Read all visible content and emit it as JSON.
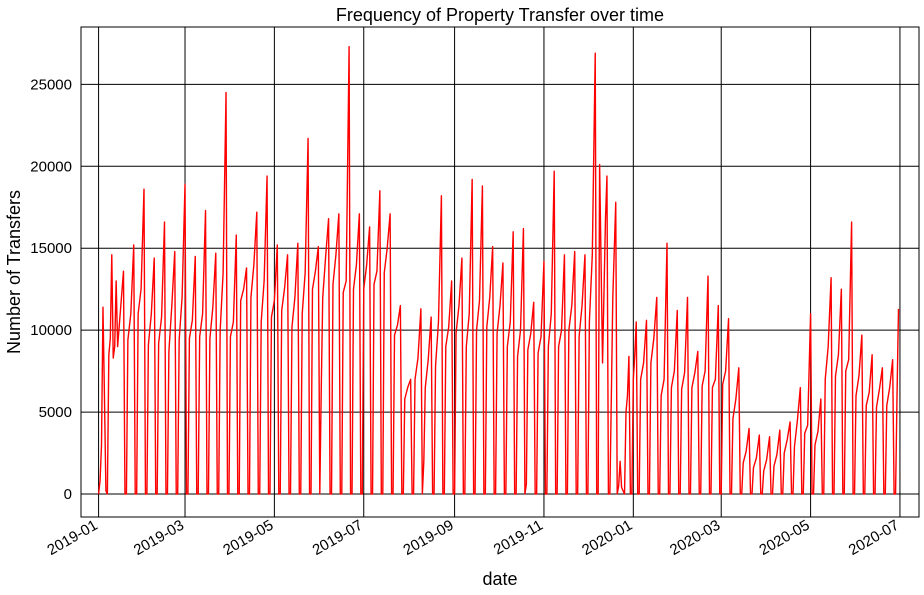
{
  "chart_data": {
    "type": "line",
    "title": "Frequency of Property Transfer over time",
    "xlabel": "date",
    "ylabel": "Number of Transfers",
    "x_range": [
      "2018-12-20",
      "2020-07-14"
    ],
    "ylim": [
      -1400,
      28500
    ],
    "grid": true,
    "line_color": "#ff0000",
    "x_ticks": [
      "2019-01",
      "2019-03",
      "2019-05",
      "2019-07",
      "2019-09",
      "2019-11",
      "2020-01",
      "2020-03",
      "2020-05",
      "2020-07"
    ],
    "x_tick_dates": [
      "2019-01-01",
      "2019-03-01",
      "2019-05-01",
      "2019-07-01",
      "2019-09-01",
      "2019-11-01",
      "2020-01-01",
      "2020-03-01",
      "2020-05-01",
      "2020-07-01"
    ],
    "y_ticks": [
      0,
      5000,
      10000,
      15000,
      20000,
      25000
    ],
    "y_tick_labels": [
      "0",
      "5000",
      "10000",
      "15000",
      "20000",
      "25000"
    ],
    "series": [
      {
        "dates": [
          "2019-01-01",
          "2019-01-02",
          "2019-01-03",
          "2019-01-04",
          "2019-01-05",
          "2019-01-06",
          "2019-01-07",
          "2019-01-08",
          "2019-01-09",
          "2019-01-10",
          "2019-01-11",
          "2019-01-12",
          "2019-01-13",
          "2019-01-14",
          "2019-01-16",
          "2019-01-18",
          "2019-01-19",
          "2019-01-20",
          "2019-01-21",
          "2019-01-23",
          "2019-01-25",
          "2019-01-26",
          "2019-01-27",
          "2019-01-28",
          "2019-01-30",
          "2019-02-01",
          "2019-02-02",
          "2019-02-03",
          "2019-02-04",
          "2019-02-06",
          "2019-02-08",
          "2019-02-09",
          "2019-02-10",
          "2019-02-11",
          "2019-02-13",
          "2019-02-15",
          "2019-02-16",
          "2019-02-17",
          "2019-02-18",
          "2019-02-20",
          "2019-02-22",
          "2019-02-23",
          "2019-02-24",
          "2019-02-25",
          "2019-02-27",
          "2019-03-01",
          "2019-03-02",
          "2019-03-03",
          "2019-03-04",
          "2019-03-06",
          "2019-03-08",
          "2019-03-09",
          "2019-03-10",
          "2019-03-11",
          "2019-03-13",
          "2019-03-15",
          "2019-03-16",
          "2019-03-17",
          "2019-03-18",
          "2019-03-20",
          "2019-03-22",
          "2019-03-23",
          "2019-03-24",
          "2019-03-25",
          "2019-03-27",
          "2019-03-29",
          "2019-03-30",
          "2019-03-31",
          "2019-04-01",
          "2019-04-03",
          "2019-04-05",
          "2019-04-06",
          "2019-04-07",
          "2019-04-08",
          "2019-04-10",
          "2019-04-12",
          "2019-04-13",
          "2019-04-14",
          "2019-04-15",
          "2019-04-17",
          "2019-04-19",
          "2019-04-20",
          "2019-04-21",
          "2019-04-22",
          "2019-04-24",
          "2019-04-26",
          "2019-04-27",
          "2019-04-28",
          "2019-04-29",
          "2019-05-01",
          "2019-05-03",
          "2019-05-04",
          "2019-05-05",
          "2019-05-06",
          "2019-05-08",
          "2019-05-10",
          "2019-05-11",
          "2019-05-12",
          "2019-05-13",
          "2019-05-15",
          "2019-05-17",
          "2019-05-18",
          "2019-05-19",
          "2019-05-20",
          "2019-05-22",
          "2019-05-24",
          "2019-05-25",
          "2019-05-26",
          "2019-05-27",
          "2019-05-29",
          "2019-05-31",
          "2019-06-01",
          "2019-06-02",
          "2019-06-03",
          "2019-06-05",
          "2019-06-07",
          "2019-06-08",
          "2019-06-09",
          "2019-06-10",
          "2019-06-12",
          "2019-06-14",
          "2019-06-15",
          "2019-06-16",
          "2019-06-17",
          "2019-06-19",
          "2019-06-21",
          "2019-06-22",
          "2019-06-23",
          "2019-06-24",
          "2019-06-26",
          "2019-06-28",
          "2019-06-29",
          "2019-06-30",
          "2019-07-01",
          "2019-07-03",
          "2019-07-05",
          "2019-07-06",
          "2019-07-07",
          "2019-07-08",
          "2019-07-10",
          "2019-07-12",
          "2019-07-13",
          "2019-07-14",
          "2019-07-15",
          "2019-07-17",
          "2019-07-19",
          "2019-07-20",
          "2019-07-21",
          "2019-07-22",
          "2019-07-24",
          "2019-07-26",
          "2019-07-27",
          "2019-07-28",
          "2019-07-29",
          "2019-07-31",
          "2019-08-02",
          "2019-08-03",
          "2019-08-04",
          "2019-08-05",
          "2019-08-07",
          "2019-08-09",
          "2019-08-10",
          "2019-08-11",
          "2019-08-12",
          "2019-08-14",
          "2019-08-16",
          "2019-08-17",
          "2019-08-18",
          "2019-08-19",
          "2019-08-21",
          "2019-08-23",
          "2019-08-24",
          "2019-08-25",
          "2019-08-26",
          "2019-08-28",
          "2019-08-30",
          "2019-08-31",
          "2019-09-01",
          "2019-09-02",
          "2019-09-04",
          "2019-09-06",
          "2019-09-07",
          "2019-09-08",
          "2019-09-09",
          "2019-09-11",
          "2019-09-13",
          "2019-09-14",
          "2019-09-15",
          "2019-09-16",
          "2019-09-18",
          "2019-09-20",
          "2019-09-21",
          "2019-09-22",
          "2019-09-23",
          "2019-09-25",
          "2019-09-27",
          "2019-09-28",
          "2019-09-29",
          "2019-09-30",
          "2019-10-02",
          "2019-10-04",
          "2019-10-05",
          "2019-10-06",
          "2019-10-07",
          "2019-10-09",
          "2019-10-11",
          "2019-10-12",
          "2019-10-13",
          "2019-10-14",
          "2019-10-16",
          "2019-10-18",
          "2019-10-19",
          "2019-10-20",
          "2019-10-21",
          "2019-10-23",
          "2019-10-25",
          "2019-10-26",
          "2019-10-27",
          "2019-10-28",
          "2019-10-30",
          "2019-11-01",
          "2019-11-02",
          "2019-11-03",
          "2019-11-04",
          "2019-11-06",
          "2019-11-08",
          "2019-11-09",
          "2019-11-10",
          "2019-11-11",
          "2019-11-13",
          "2019-11-15",
          "2019-11-16",
          "2019-11-17",
          "2019-11-18",
          "2019-11-20",
          "2019-11-22",
          "2019-11-23",
          "2019-11-24",
          "2019-11-25",
          "2019-11-27",
          "2019-11-29",
          "2019-11-30",
          "2019-12-01",
          "2019-12-02",
          "2019-12-04",
          "2019-12-06",
          "2019-12-07",
          "2019-12-08",
          "2019-12-09",
          "2019-12-11",
          "2019-12-13",
          "2019-12-14",
          "2019-12-15",
          "2019-12-16",
          "2019-12-18",
          "2019-12-20",
          "2019-12-21",
          "2019-12-22",
          "2019-12-23",
          "2019-12-24",
          "2019-12-26",
          "2019-12-27",
          "2019-12-28",
          "2019-12-29",
          "2019-12-30",
          "2019-12-31",
          "2020-01-01",
          "2020-01-02",
          "2020-01-03",
          "2020-01-04",
          "2020-01-05",
          "2020-01-06",
          "2020-01-08",
          "2020-01-10",
          "2020-01-11",
          "2020-01-12",
          "2020-01-13",
          "2020-01-15",
          "2020-01-17",
          "2020-01-18",
          "2020-01-19",
          "2020-01-20",
          "2020-01-22",
          "2020-01-24",
          "2020-01-25",
          "2020-01-26",
          "2020-01-27",
          "2020-01-29",
          "2020-01-31",
          "2020-02-01",
          "2020-02-02",
          "2020-02-03",
          "2020-02-05",
          "2020-02-07",
          "2020-02-08",
          "2020-02-09",
          "2020-02-10",
          "2020-02-12",
          "2020-02-14",
          "2020-02-15",
          "2020-02-16",
          "2020-02-17",
          "2020-02-19",
          "2020-02-21",
          "2020-02-22",
          "2020-02-23",
          "2020-02-24",
          "2020-02-26",
          "2020-02-28",
          "2020-02-29",
          "2020-03-01",
          "2020-03-02",
          "2020-03-04",
          "2020-03-06",
          "2020-03-07",
          "2020-03-08",
          "2020-03-09",
          "2020-03-11",
          "2020-03-13",
          "2020-03-14",
          "2020-03-15",
          "2020-03-16",
          "2020-03-18",
          "2020-03-20",
          "2020-03-21",
          "2020-03-22",
          "2020-03-23",
          "2020-03-25",
          "2020-03-27",
          "2020-03-28",
          "2020-03-29",
          "2020-03-30",
          "2020-04-01",
          "2020-04-03",
          "2020-04-04",
          "2020-04-05",
          "2020-04-06",
          "2020-04-08",
          "2020-04-10",
          "2020-04-11",
          "2020-04-12",
          "2020-04-13",
          "2020-04-15",
          "2020-04-17",
          "2020-04-18",
          "2020-04-19",
          "2020-04-20",
          "2020-04-22",
          "2020-04-24",
          "2020-04-25",
          "2020-04-26",
          "2020-04-27",
          "2020-04-29",
          "2020-05-01",
          "2020-05-02",
          "2020-05-03",
          "2020-05-04",
          "2020-05-06",
          "2020-05-08",
          "2020-05-09",
          "2020-05-10",
          "2020-05-11",
          "2020-05-13",
          "2020-05-15",
          "2020-05-16",
          "2020-05-17",
          "2020-05-18",
          "2020-05-20",
          "2020-05-22",
          "2020-05-23",
          "2020-05-24",
          "2020-05-25",
          "2020-05-27",
          "2020-05-29",
          "2020-05-30",
          "2020-05-31",
          "2020-06-01",
          "2020-06-03",
          "2020-06-05",
          "2020-06-06",
          "2020-06-07",
          "2020-06-08",
          "2020-06-10",
          "2020-06-12",
          "2020-06-13",
          "2020-06-14",
          "2020-06-15",
          "2020-06-17",
          "2020-06-19",
          "2020-06-20",
          "2020-06-21",
          "2020-06-22",
          "2020-06-24",
          "2020-06-26",
          "2020-06-27",
          "2020-06-28",
          "2020-06-29",
          "2020-06-30"
        ],
        "values": [
          0,
          800,
          3000,
          11400,
          6000,
          200,
          0,
          8500,
          9500,
          14600,
          8300,
          9000,
          13000,
          9000,
          11300,
          13600,
          0,
          0,
          9400,
          11000,
          15200,
          0,
          0,
          11000,
          12500,
          18600,
          0,
          0,
          9100,
          11000,
          14400,
          0,
          0,
          9200,
          10800,
          16600,
          0,
          0,
          8700,
          11500,
          14800,
          0,
          0,
          9400,
          12000,
          18900,
          0,
          0,
          9500,
          10600,
          14500,
          0,
          0,
          9600,
          11000,
          17300,
          0,
          0,
          9500,
          11400,
          14700,
          0,
          0,
          10000,
          13500,
          24500,
          0,
          0,
          9600,
          10500,
          15800,
          0,
          0,
          11800,
          12500,
          13800,
          0,
          0,
          12000,
          14000,
          17200,
          0,
          0,
          10500,
          13000,
          19400,
          0,
          0,
          10800,
          11800,
          15200,
          0,
          0,
          11200,
          12600,
          14600,
          0,
          0,
          10200,
          12000,
          15300,
          0,
          0,
          11000,
          13500,
          21700,
          0,
          0,
          12500,
          13600,
          15100,
          0,
          6500,
          12000,
          14500,
          16800,
          0,
          0,
          12800,
          14600,
          17100,
          0,
          0,
          12300,
          13000,
          27300,
          0,
          0,
          12500,
          14000,
          17100,
          0,
          0,
          12500,
          14000,
          16300,
          0,
          0,
          12800,
          13600,
          18500,
          0,
          0,
          13500,
          15000,
          17100,
          0,
          0,
          9700,
          10300,
          11500,
          0,
          0,
          5800,
          6500,
          7000,
          0,
          0,
          7000,
          8300,
          11300,
          0,
          2000,
          6500,
          8200,
          10800,
          0,
          0,
          7800,
          10500,
          18200,
          0,
          0,
          9000,
          10200,
          13000,
          0,
          0,
          9800,
          11500,
          14400,
          0,
          0,
          9000,
          11000,
          19200,
          0,
          0,
          10000,
          11800,
          18800,
          0,
          0,
          10200,
          12000,
          15100,
          0,
          0,
          9800,
          11500,
          14100,
          0,
          0,
          9000,
          10500,
          16000,
          0,
          0,
          8400,
          10000,
          16200,
          0,
          600,
          8800,
          9800,
          11700,
          0,
          0,
          8600,
          9600,
          14200,
          0,
          0,
          9000,
          11000,
          19700,
          0,
          0,
          9000,
          10000,
          14600,
          0,
          0,
          10000,
          11500,
          14800,
          0,
          0,
          9600,
          11500,
          14600,
          0,
          0,
          10500,
          14600,
          26900,
          0,
          0,
          20100,
          8000,
          16800,
          19400,
          0,
          0,
          12000,
          17800,
          0,
          500,
          2000,
          400,
          0,
          5000,
          6000,
          8400,
          0,
          0,
          7000,
          8500,
          10500,
          0,
          0,
          7000,
          8000,
          10600,
          0,
          0,
          8000,
          9500,
          12000,
          0,
          0,
          6000,
          7000,
          15300,
          0,
          0,
          6500,
          7500,
          11200,
          0,
          0,
          6400,
          7400,
          12000,
          0,
          0,
          6500,
          7400,
          8700,
          0,
          0,
          6600,
          7500,
          13300,
          0,
          0,
          6500,
          7000,
          11500,
          0,
          0,
          6700,
          7500,
          10700,
          0,
          0,
          4600,
          5800,
          7700,
          0,
          0,
          1900,
          2600,
          4000,
          0,
          0,
          1600,
          2200,
          3600,
          0,
          0,
          1400,
          2100,
          3500,
          0,
          0,
          1700,
          2400,
          3900,
          0,
          0,
          2500,
          3300,
          4400,
          0,
          0,
          2900,
          4500,
          6500,
          0,
          0,
          3700,
          4200,
          11000,
          0,
          0,
          3000,
          3800,
          5800,
          0,
          0,
          7000,
          9000,
          13200,
          0,
          0,
          7200,
          8500,
          12500,
          0,
          0,
          7500,
          8200,
          16600,
          0,
          0,
          6000,
          7200,
          9700,
          0,
          0,
          5400,
          6200,
          8500,
          0,
          0,
          5300,
          6400,
          7700,
          0,
          0,
          5400,
          6500,
          8200,
          0,
          0,
          6000,
          11300
        ]
      }
    ]
  }
}
